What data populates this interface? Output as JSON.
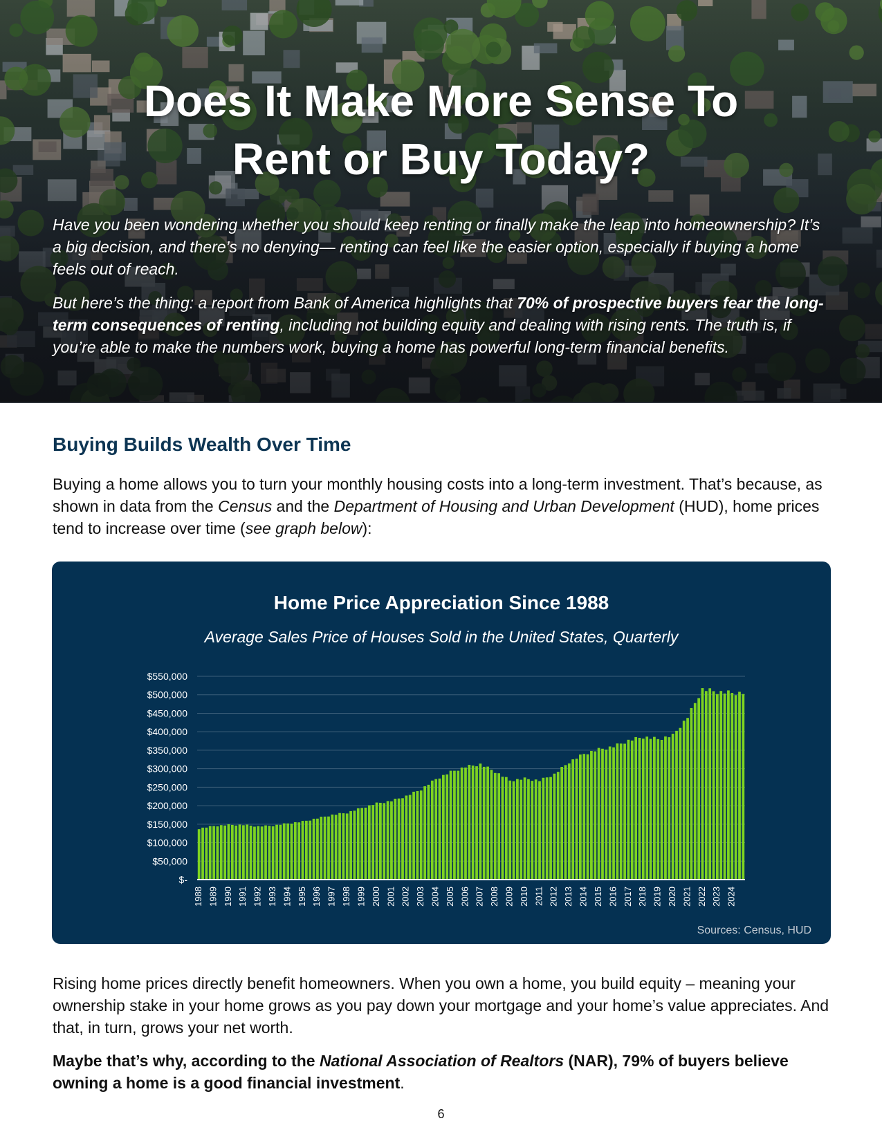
{
  "hero": {
    "title_line1": "Does It Make More Sense To",
    "title_line2": "Rent or Buy Today?",
    "para1": "Have you been wondering whether you should keep renting or finally make the leap into homeownership? It’s a big decision, and there’s no denying— renting can feel like the easier option, especially if buying a home feels out of reach.",
    "para2_a": "But here’s the thing: a report from Bank of America highlights that ",
    "para2_bold": "70% of prospective buyers fear the long-term consequences of renting",
    "para2_b": ", including not building equity and dealing with rising rents. The truth is, if you’re able to make the numbers work, buying a home has powerful long-term financial benefits."
  },
  "section": {
    "title": "Buying Builds Wealth Over Time",
    "para1_a": "Buying a home allows you to turn your monthly housing costs into a long-term investment. That’s because, as shown in data from the ",
    "para1_census": "Census",
    "para1_b": " and the ",
    "para1_hud": "Department of Housing and Urban Development",
    "para1_c": " (HUD), home prices tend to increase over time (",
    "para1_see": "see graph below",
    "para1_d": "):",
    "para2": "Rising home prices directly benefit homeowners. When you own a home, you build equity – meaning your ownership stake in your home grows as you pay down your mortgage and your home’s value appreciates. And that, in turn, grows your net worth.",
    "para3_a": "Maybe that’s why, according to the ",
    "para3_nar": "National Association of Realtors",
    "para3_b": " (NAR), 79% of buyers believe owning a home is a good financial investment",
    "para3_c": "."
  },
  "chart_data": {
    "type": "bar",
    "title": "Home Price Appreciation Since 1988",
    "subtitle": "Average Sales Price of Houses Sold in the United States, Quarterly",
    "xlabel": "",
    "ylabel": "",
    "ylim": [
      0,
      550000
    ],
    "grid": true,
    "legend": "none",
    "bar_color": "#7ed321",
    "yticks": [
      {
        "value": 0,
        "label": "$-"
      },
      {
        "value": 50000,
        "label": "$50,000"
      },
      {
        "value": 100000,
        "label": "$100,000"
      },
      {
        "value": 150000,
        "label": "$150,000"
      },
      {
        "value": 200000,
        "label": "$200,000"
      },
      {
        "value": 250000,
        "label": "$250,000"
      },
      {
        "value": 300000,
        "label": "$300,000"
      },
      {
        "value": 350000,
        "label": "$350,000"
      },
      {
        "value": 400000,
        "label": "$400,000"
      },
      {
        "value": 450000,
        "label": "$450,000"
      },
      {
        "value": 500000,
        "label": "$500,000"
      },
      {
        "value": 550000,
        "label": "$550,000"
      }
    ],
    "year_labels": [
      "1988",
      "1989",
      "1990",
      "1991",
      "1992",
      "1993",
      "1994",
      "1995",
      "1996",
      "1997",
      "1998",
      "1999",
      "2000",
      "2001",
      "2002",
      "2003",
      "2004",
      "2005",
      "2006",
      "2007",
      "2008",
      "2009",
      "2010",
      "2011",
      "2012",
      "2013",
      "2014",
      "2015",
      "2016",
      "2017",
      "2018",
      "2019",
      "2020",
      "2021",
      "2022",
      "2023",
      "2024"
    ],
    "annual_values": [
      138000,
      145000,
      148000,
      148000,
      144000,
      146000,
      152000,
      157000,
      166000,
      175000,
      181000,
      194000,
      206000,
      213000,
      226000,
      244000,
      272000,
      291000,
      305000,
      312000,
      292000,
      268000,
      273000,
      268000,
      285000,
      318000,
      340000,
      352000,
      360000,
      376000,
      386000,
      380000,
      390000,
      440000,
      515000,
      508000,
      505000
    ],
    "source": "Sources: Census, HUD"
  },
  "page_number": "6"
}
